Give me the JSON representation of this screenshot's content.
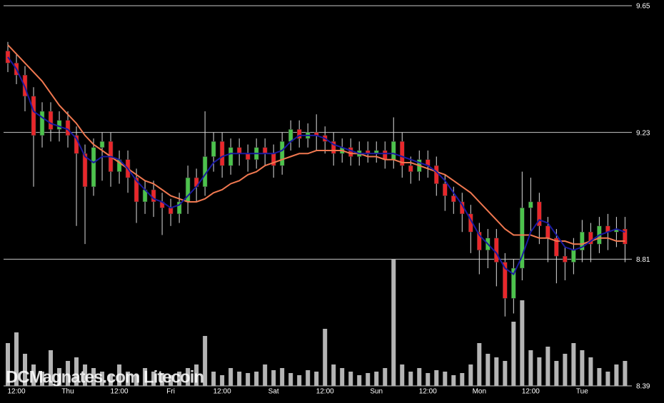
{
  "chart_data": {
    "type": "candlestick",
    "watermark": "DCMagnates.com Litecoin",
    "ylim": [
      8.39,
      9.65
    ],
    "yticks": [
      9.65,
      9.23,
      8.81,
      8.39
    ],
    "grid": true,
    "xlim": [
      -0.5,
      72.8
    ],
    "xticks": [
      {
        "value": 1,
        "label": "12:00"
      },
      {
        "value": 7,
        "label": "Thu"
      },
      {
        "value": 13,
        "label": "12:00"
      },
      {
        "value": 19,
        "label": "Fri"
      },
      {
        "value": 25,
        "label": "12:00"
      },
      {
        "value": 31,
        "label": "Sat"
      },
      {
        "value": 37,
        "label": "12:00"
      },
      {
        "value": 43,
        "label": "Sun"
      },
      {
        "value": 49,
        "label": "12:00"
      },
      {
        "value": 55,
        "label": "Mon"
      },
      {
        "value": 61,
        "label": "12:00"
      },
      {
        "value": 67,
        "label": "Tue"
      }
    ],
    "up_color": "#4cc34c",
    "down_color": "#e8272b",
    "volume_color": "#b4b4b4",
    "volume_lim": [
      0,
      200
    ],
    "open": [
      9.5,
      9.46,
      9.42,
      9.35,
      9.22,
      9.3,
      9.24,
      9.27,
      9.22,
      9.16,
      9.05,
      9.18,
      9.2,
      9.1,
      9.14,
      9.08,
      9.0,
      9.04,
      9.0,
      8.98,
      8.96,
      9.0,
      9.08,
      9.05,
      9.15,
      9.2,
      9.12,
      9.18,
      9.16,
      9.14,
      9.18,
      9.16,
      9.12,
      9.2,
      9.24,
      9.21,
      9.23,
      9.22,
      9.2,
      9.16,
      9.18,
      9.15,
      9.17,
      9.16,
      9.17,
      9.14,
      9.2,
      9.12,
      9.1,
      9.14,
      9.12,
      9.06,
      9.02,
      9.0,
      8.96,
      8.9,
      8.84,
      8.88,
      8.8,
      8.68,
      8.78,
      8.98,
      9.0,
      8.92,
      8.88,
      8.82,
      8.8,
      8.84,
      8.9,
      8.86,
      8.92,
      8.9,
      8.91
    ],
    "high": [
      9.53,
      9.49,
      9.45,
      9.38,
      9.33,
      9.33,
      9.3,
      9.3,
      9.25,
      9.19,
      9.21,
      9.23,
      9.23,
      9.17,
      9.17,
      9.11,
      9.07,
      9.07,
      9.03,
      9.01,
      9.03,
      9.12,
      9.11,
      9.3,
      9.23,
      9.23,
      9.21,
      9.21,
      9.19,
      9.21,
      9.21,
      9.19,
      9.23,
      9.27,
      9.27,
      9.26,
      9.29,
      9.25,
      9.23,
      9.21,
      9.21,
      9.2,
      9.2,
      9.2,
      9.2,
      9.28,
      9.23,
      9.15,
      9.17,
      9.17,
      9.15,
      9.09,
      9.05,
      9.03,
      8.99,
      8.93,
      8.91,
      8.91,
      8.83,
      8.81,
      9.1,
      9.08,
      9.03,
      8.95,
      8.91,
      8.85,
      8.88,
      8.94,
      8.93,
      8.95,
      8.96,
      8.95,
      8.95
    ],
    "low": [
      9.43,
      9.39,
      9.3,
      9.05,
      9.18,
      9.2,
      9.2,
      9.18,
      8.92,
      8.86,
      9.02,
      9.07,
      9.05,
      9.06,
      9.03,
      8.93,
      8.96,
      8.95,
      8.89,
      8.92,
      8.93,
      8.96,
      9.0,
      9.02,
      9.1,
      9.08,
      9.09,
      9.12,
      9.1,
      9.11,
      9.12,
      9.08,
      9.09,
      9.17,
      9.18,
      9.18,
      9.17,
      9.16,
      9.12,
      9.13,
      9.12,
      9.12,
      9.13,
      9.13,
      9.11,
      9.11,
      9.08,
      9.06,
      9.07,
      9.08,
      9.02,
      8.97,
      8.96,
      8.9,
      8.83,
      8.76,
      8.78,
      8.72,
      8.62,
      8.63,
      8.74,
      8.9,
      8.86,
      8.8,
      8.73,
      8.74,
      8.76,
      8.8,
      8.8,
      8.83,
      8.84,
      8.85,
      8.8
    ],
    "close": [
      9.46,
      9.42,
      9.35,
      9.22,
      9.3,
      9.24,
      9.27,
      9.22,
      9.16,
      9.05,
      9.18,
      9.2,
      9.1,
      9.14,
      9.08,
      9.0,
      9.04,
      9.0,
      8.98,
      8.96,
      9.0,
      9.08,
      9.05,
      9.15,
      9.2,
      9.12,
      9.18,
      9.16,
      9.14,
      9.18,
      9.16,
      9.12,
      9.2,
      9.24,
      9.21,
      9.23,
      9.22,
      9.2,
      9.16,
      9.18,
      9.15,
      9.17,
      9.16,
      9.17,
      9.14,
      9.2,
      9.12,
      9.1,
      9.14,
      9.12,
      9.06,
      9.02,
      9.0,
      8.96,
      8.9,
      8.84,
      8.88,
      8.8,
      8.68,
      8.78,
      8.98,
      9.0,
      8.92,
      8.88,
      8.82,
      8.8,
      8.84,
      8.9,
      8.86,
      8.92,
      8.9,
      8.91,
      8.86
    ],
    "volume": [
      60,
      75,
      45,
      30,
      20,
      50,
      25,
      35,
      40,
      30,
      25,
      20,
      15,
      30,
      20,
      15,
      25,
      20,
      18,
      15,
      20,
      25,
      30,
      70,
      20,
      15,
      25,
      20,
      18,
      20,
      30,
      22,
      25,
      18,
      15,
      22,
      20,
      80,
      30,
      25,
      20,
      15,
      18,
      20,
      25,
      178,
      30,
      20,
      25,
      18,
      22,
      20,
      15,
      18,
      30,
      60,
      45,
      40,
      35,
      90,
      120,
      50,
      40,
      55,
      35,
      45,
      60,
      50,
      40,
      25,
      20,
      30,
      35
    ],
    "lines": [
      {
        "color": "#f07850",
        "values": [
          9.52,
          9.49,
          9.46,
          9.43,
          9.4,
          9.36,
          9.32,
          9.29,
          9.26,
          9.22,
          9.19,
          9.17,
          9.15,
          9.13,
          9.11,
          9.09,
          9.07,
          9.06,
          9.04,
          9.02,
          9.01,
          9.0,
          9.0,
          9.01,
          9.03,
          9.04,
          9.06,
          9.07,
          9.09,
          9.1,
          9.12,
          9.13,
          9.14,
          9.15,
          9.16,
          9.16,
          9.17,
          9.17,
          9.17,
          9.17,
          9.16,
          9.16,
          9.15,
          9.15,
          9.14,
          9.14,
          9.13,
          9.13,
          9.12,
          9.11,
          9.1,
          9.09,
          9.07,
          9.05,
          9.03,
          9.0,
          8.97,
          8.94,
          8.91,
          8.89,
          8.89,
          8.89,
          8.88,
          8.88,
          8.87,
          8.87,
          8.86,
          8.86,
          8.87,
          8.88,
          8.88,
          8.87,
          8.87
        ]
      },
      {
        "color": "#1a1aa0",
        "values": [
          9.48,
          9.44,
          9.38,
          9.3,
          9.28,
          9.26,
          9.25,
          9.24,
          9.21,
          9.15,
          9.13,
          9.15,
          9.15,
          9.14,
          9.11,
          9.07,
          9.04,
          9.01,
          9.0,
          8.98,
          8.99,
          9.02,
          9.05,
          9.09,
          9.13,
          9.15,
          9.16,
          9.16,
          9.16,
          9.16,
          9.16,
          9.16,
          9.17,
          9.2,
          9.22,
          9.22,
          9.22,
          9.21,
          9.19,
          9.18,
          9.17,
          9.16,
          9.16,
          9.16,
          9.16,
          9.16,
          9.15,
          9.14,
          9.13,
          9.12,
          9.1,
          9.07,
          9.03,
          8.99,
          8.94,
          8.89,
          8.86,
          8.83,
          8.78,
          8.76,
          8.82,
          8.9,
          8.94,
          8.93,
          8.89,
          8.85,
          8.84,
          8.85,
          8.87,
          8.89,
          8.9,
          8.91,
          8.9
        ]
      }
    ]
  }
}
